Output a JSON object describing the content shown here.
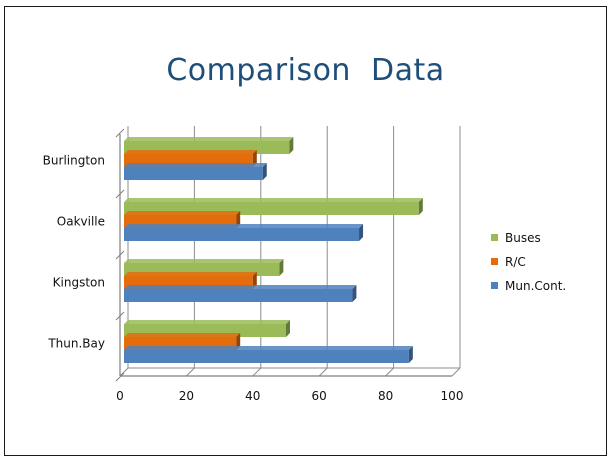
{
  "chart_data": {
    "type": "bar",
    "orientation": "horizontal",
    "title": "Comparison  Data",
    "categories": [
      "Burlington",
      "Oakville",
      "Kingston",
      "Thun.Bay"
    ],
    "series": [
      {
        "name": "Buses",
        "color": "#9bbb59",
        "values": [
          51,
          90,
          48,
          50
        ]
      },
      {
        "name": "R/C",
        "color": "#e46c0a",
        "values": [
          40,
          35,
          40,
          35
        ]
      },
      {
        "name": "Mun.Cont.",
        "color": "#4f81bd",
        "values": [
          43,
          72,
          70,
          87
        ]
      }
    ],
    "legend_order": [
      "Buses",
      "R/C",
      "Mun.Cont."
    ],
    "xlim": [
      0,
      100
    ],
    "xticks": [
      "0",
      "20",
      "40",
      "60",
      "80",
      "100"
    ],
    "grid": true,
    "legend": "right"
  }
}
